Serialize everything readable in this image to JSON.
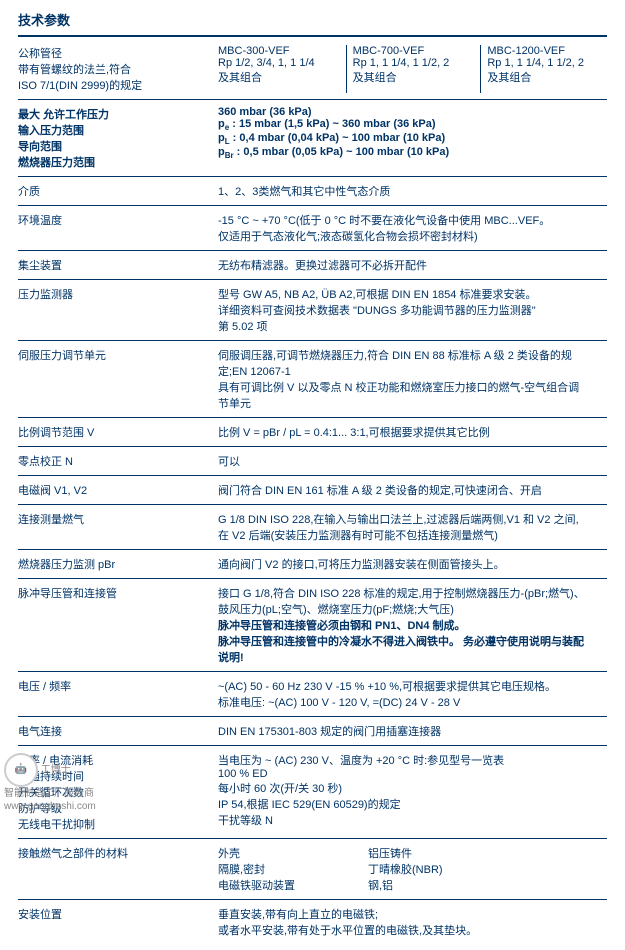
{
  "title": "技术参数",
  "header": {
    "label1": "公称管径",
    "label2": "带有管螺纹的法兰,符合",
    "label3": "ISO 7/1(DIN 2999)的规定",
    "cols": [
      {
        "model": "MBC-300-VEF",
        "spec": "Rp 1/2, 3/4, 1, 1 1/4",
        "combo": "及其组合"
      },
      {
        "model": "MBC-700-VEF",
        "spec": "Rp 1, 1 1/4, 1 1/2, 2",
        "combo": "及其组合"
      },
      {
        "model": "MBC-1200-VEF",
        "spec": "Rp 1, 1 1/4, 1 1/2, 2",
        "combo": "及其组合"
      }
    ]
  },
  "pressure": {
    "l1": "最大 允许工作压力",
    "v1": "360 mbar (36 kPa)",
    "l2": "输入压力范围",
    "v2a": "p",
    "v2s": "e",
    "v2b": " : 15 mbar  (1,5 kPa)  ~ 360 mbar (36 kPa)",
    "l3": "导向范围",
    "v3a": "p",
    "v3s": "L",
    "v3b": " : 0,4 mbar (0,04 kPa) ~ 100 mbar (10 kPa)",
    "l4": "燃烧器压力范围",
    "v4a": "p",
    "v4s": "Br",
    "v4b": " : 0,5 mbar (0,05 kPa) ~ 100 mbar (10 kPa)"
  },
  "rows": [
    {
      "label": "介质",
      "value": "1、2、3类燃气和其它中性气态介质"
    },
    {
      "label": "环境温度",
      "value": "-15 °C ~ +70 °C(低于 0 °C 时不要在液化气设备中使用 MBC...VEF。\n仅适用于气态液化气;液态碳氢化合物会损坏密封材料)"
    },
    {
      "label": "集尘装置",
      "value": "无纺布精滤器。更换过滤器可不必拆开配件"
    },
    {
      "label": "压力监测器",
      "value": "型号 GW A5, NB A2, ÜB A2,可根据 DIN EN 1854 标准要求安装。\n详细资料可查阅技术数据表 \"DUNGS 多功能调节器的压力监测器\"\n第 5.02 项"
    },
    {
      "label": "伺服压力调节单元",
      "value": "伺服调压器,可调节燃烧器压力,符合 DIN EN 88 标准标 A 级 2 类设备的规\n定;EN 12067-1\n具有可调比例 V 以及零点 N 校正功能和燃烧室压力接口的燃气-空气组合调\n节单元"
    },
    {
      "label": "比例调节范围 V",
      "value": "比例 V = pBr / pL = 0.4:1... 3:1,可根据要求提供其它比例"
    },
    {
      "label": "零点校正 N",
      "value": "可以"
    },
    {
      "label": "电磁阀 V1, V2",
      "value": "阀门符合 DIN EN 161 标准 A 级 2 类设备的规定,可快速闭合、开启"
    },
    {
      "label": "连接测量燃气",
      "value": "G 1/8 DIN ISO 228,在输入与输出口法兰上,过滤器后端两侧,V1 和 V2 之间,\n在 V2 后端(安装压力监测器有时可能不包括连接测量燃气)"
    },
    {
      "label": "燃烧器压力监测 pBr",
      "value": "通向阀门 V2 的接口,可将压力监测器安装在侧面管接头上。"
    },
    {
      "label": "脉冲导压管和连接管",
      "value": "接口 G 1/8,符合 DIN ISO 228 标准的规定,用于控制燃烧器压力-(pBr;燃气)、\n鼓风压力(pL;空气)、燃烧室压力(pF;燃烧;大气压)",
      "bold": "脉冲导压管和连接管必须由钢和 PN1、DN4 制成。\n脉冲导压管和连接管中的冷凝水不得进入阀铁中。 务必遵守使用说明与装配\n说明!"
    },
    {
      "label": "电压 / 频率",
      "value": "~(AC) 50 - 60 Hz 230 V -15 % +10 %,可根据要求提供其它电压规格。\n标准电压: ~(AC) 100 V - 120 V, =(DC) 24 V - 28 V"
    },
    {
      "label": "电气连接",
      "value": "DIN EN 175301-803 规定的阀门用插塞连接器"
    }
  ],
  "power": {
    "l1": "功率 / 电流消耗",
    "v1": "当电压为 ~ (AC) 230 V、温度为 +20 °C 时:参见型号一览表",
    "l2": "接通持续时间",
    "v2": "100 % ED",
    "l3": "开关循环次数",
    "v3": "每小时 60 次(开/关 30 秒)",
    "l4": "防护等级",
    "v4": "IP 54,根据 IEC 529(EN 60529)的规定",
    "l5": "无线电干扰抑制",
    "v5": "干扰等级 N"
  },
  "materials": {
    "label": "接触燃气之部件的材料",
    "r1a": "外壳",
    "r1b": "铝压铸件",
    "r2a": "隔膜,密封",
    "r2b": "丁晴橡胶(NBR)",
    "r3a": "电磁铁驱动装置",
    "r3b": "钢,铝"
  },
  "install": {
    "label": "安装位置",
    "v": "垂直安装,带有向上直立的电磁铁;\n或者水平安装,带有处于水平位置的电磁铁,及其垫块。"
  },
  "watermark": {
    "brand": "工博士",
    "sub": "智能制造工厂服务商",
    "url": "www.gongboshi.com"
  }
}
